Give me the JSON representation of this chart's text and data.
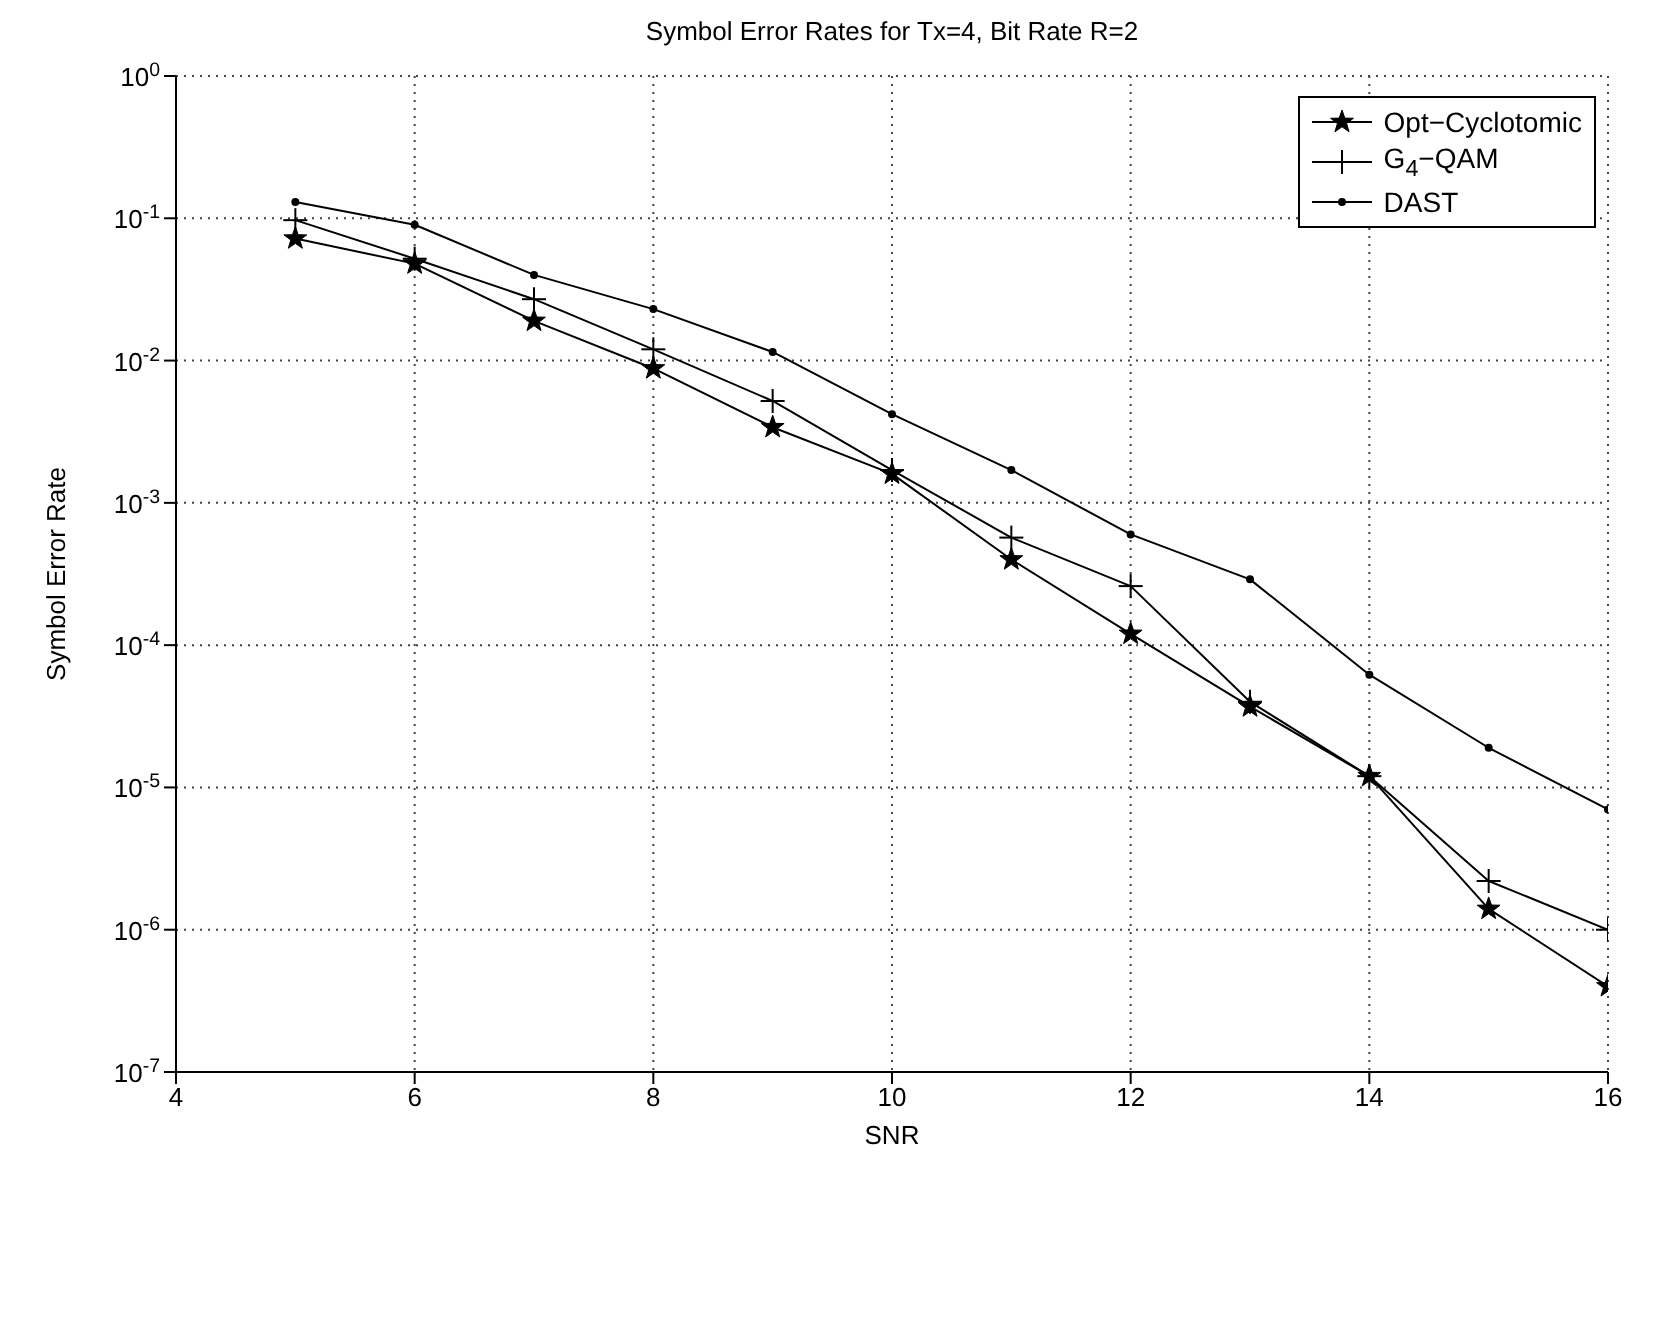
{
  "chart_data": {
    "type": "line",
    "title": "Symbol Error Rates for Tx=4, Bit Rate R=2",
    "xlabel": "SNR",
    "ylabel": "Symbol Error Rate",
    "x": [
      5,
      6,
      7,
      8,
      9,
      10,
      11,
      12,
      13,
      14,
      15,
      16
    ],
    "series": [
      {
        "name": "Opt−Cyclotomic",
        "color": "#000000",
        "marker": "star",
        "values": [
          0.072,
          0.048,
          0.019,
          0.0088,
          0.0034,
          0.0016,
          0.0004,
          0.00012,
          3.7e-05,
          1.2e-05,
          1.4e-06,
          4e-07
        ]
      },
      {
        "name": "G$_{4}$−QAM",
        "color": "#000000",
        "marker": "cross",
        "values": [
          0.097,
          0.052,
          0.027,
          0.012,
          0.0052,
          0.0017,
          0.00057,
          0.00026,
          4e-05,
          1.2e-05,
          2.2e-06,
          1e-06
        ]
      },
      {
        "name": "DAST",
        "color": "#000000",
        "marker": "circle",
        "values": [
          0.13,
          0.09,
          0.04,
          0.023,
          0.0115,
          0.0042,
          0.0017,
          0.0006,
          0.00029,
          6.2e-05,
          1.9e-05,
          7e-06
        ]
      }
    ],
    "xlim": [
      4,
      16
    ],
    "xticks": [
      4,
      6,
      8,
      10,
      12,
      14,
      16
    ],
    "log": "y",
    "ylim": [
      1e-07,
      1
    ],
    "yticks": [
      {
        "value": 1e-07,
        "label": "10$^{-7}$"
      },
      {
        "value": 1e-06,
        "label": "10$^{-6}$"
      },
      {
        "value": 1e-05,
        "label": "10$^{-5}$"
      },
      {
        "value": 0.0001,
        "label": "10$^{-4}$"
      },
      {
        "value": 0.001,
        "label": "10$^{-3}$"
      },
      {
        "value": 0.01,
        "label": "10$^{-2}$"
      },
      {
        "value": 0.1,
        "label": "10$^{-1}$"
      },
      {
        "value": 1,
        "label": "10$^{0}$"
      }
    ],
    "grid": true,
    "legend": "top right",
    "line_style": "solid"
  }
}
